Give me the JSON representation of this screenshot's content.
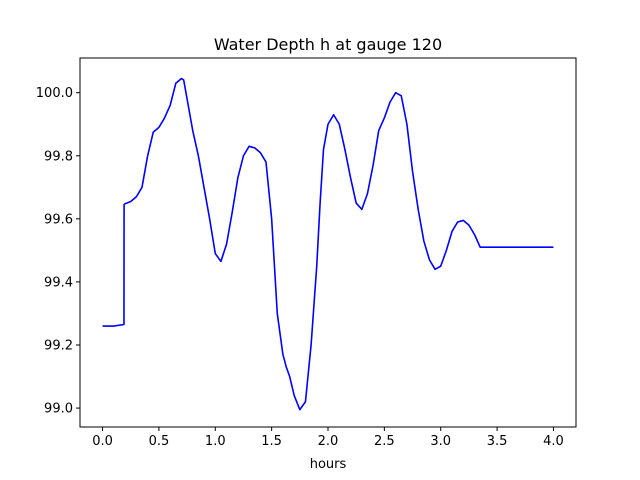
{
  "chart_data": {
    "type": "line",
    "title": "Water Depth h at gauge 120",
    "xlabel": "hours",
    "ylabel": "",
    "xlim": [
      -0.2,
      4.2
    ],
    "ylim": [
      98.94,
      100.11
    ],
    "xticks": [
      0.0,
      0.5,
      1.0,
      1.5,
      2.0,
      2.5,
      3.0,
      3.5,
      4.0
    ],
    "xtick_labels": [
      "0.0",
      "0.5",
      "1.0",
      "1.5",
      "2.0",
      "2.5",
      "3.0",
      "3.5",
      "4.0"
    ],
    "yticks": [
      99.0,
      99.2,
      99.4,
      99.6,
      99.8,
      100.0
    ],
    "ytick_labels": [
      "99.0",
      "99.2",
      "99.4",
      "99.6",
      "99.8",
      "100.0"
    ],
    "grid": false,
    "legend": "none",
    "colors": {
      "line": "#0000ff",
      "axes": "#000000",
      "background": "#ffffff"
    },
    "series": [
      {
        "x": [
          0.0,
          0.1,
          0.19,
          0.191,
          0.2,
          0.25,
          0.3,
          0.35,
          0.4,
          0.45,
          0.5,
          0.55,
          0.6,
          0.65,
          0.7,
          0.72,
          0.75,
          0.8,
          0.85,
          0.9,
          0.95,
          1.0,
          1.05,
          1.1,
          1.15,
          1.2,
          1.25,
          1.3,
          1.35,
          1.4,
          1.45,
          1.5,
          1.55,
          1.6,
          1.63,
          1.66,
          1.7,
          1.75,
          1.8,
          1.85,
          1.9,
          1.93,
          1.96,
          2.0,
          2.05,
          2.1,
          2.15,
          2.2,
          2.25,
          2.3,
          2.35,
          2.4,
          2.45,
          2.5,
          2.55,
          2.6,
          2.65,
          2.7,
          2.75,
          2.8,
          2.85,
          2.9,
          2.95,
          3.0,
          3.05,
          3.1,
          3.15,
          3.2,
          3.25,
          3.3,
          3.35,
          3.4,
          3.45,
          3.5,
          3.55,
          3.6,
          3.65,
          3.7,
          3.75,
          3.8,
          3.85,
          3.9,
          3.95,
          4.0
        ],
        "y": [
          99.26,
          99.26,
          99.265,
          99.645,
          99.648,
          99.655,
          99.67,
          99.7,
          99.8,
          99.875,
          99.89,
          99.92,
          99.96,
          100.03,
          100.045,
          100.04,
          99.98,
          99.88,
          99.8,
          99.7,
          99.6,
          99.49,
          99.465,
          99.52,
          99.62,
          99.73,
          99.8,
          99.83,
          99.825,
          99.81,
          99.78,
          99.6,
          99.3,
          99.17,
          99.13,
          99.1,
          99.04,
          98.995,
          99.02,
          99.2,
          99.45,
          99.65,
          99.82,
          99.9,
          99.93,
          99.9,
          99.82,
          99.73,
          99.65,
          99.63,
          99.68,
          99.77,
          99.88,
          99.92,
          99.97,
          100.0,
          99.99,
          99.9,
          99.75,
          99.63,
          99.53,
          99.47,
          99.44,
          99.45,
          99.5,
          99.56,
          99.59,
          99.595,
          99.58,
          99.55,
          99.51,
          99.51,
          99.51,
          99.51,
          99.51,
          99.51,
          99.51,
          99.51,
          99.51,
          99.51,
          99.51,
          99.51,
          99.51,
          99.51
        ]
      }
    ]
  }
}
